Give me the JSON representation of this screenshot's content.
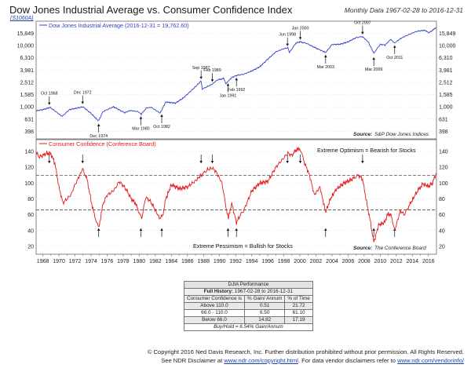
{
  "header": {
    "title": "Dow Jones Industrial Average vs. Consumer Confidence Index",
    "subtitle": "Monthly Data 1967-02-28 to 2016-12-31",
    "chart_code": "(S1060A)"
  },
  "colors": {
    "djia_line": "#3340c8",
    "conf_line": "#e31a1c",
    "grid": "#cccccc",
    "threshold": "#333333"
  },
  "chart_data": [
    {
      "type": "line",
      "legend_label": "Dow Jones Industrial Average (2016-12-31 = 19,762.60)",
      "source": "Source:",
      "source_name": "S&P Dow Jones Indices",
      "scale": "log",
      "y_ticks": [
        "15,849",
        "10,000",
        "6,310",
        "3,981",
        "2,512",
        "1,585",
        "1,000",
        "631",
        "398"
      ],
      "y_tick_values": [
        15849,
        10000,
        6310,
        3981,
        2512,
        1585,
        1000,
        631,
        398
      ],
      "ylim": [
        300,
        25000
      ],
      "xlim": [
        1967.16,
        2017
      ],
      "series": [
        {
          "x": [
            1967.16,
            1968.0,
            1968.9,
            1970.4,
            1971.3,
            1973.0,
            1974.0,
            1974.93,
            1975.5,
            1976.8,
            1978.2,
            1978.8,
            1979.8,
            1980.25,
            1980.9,
            1981.5,
            1982.6,
            1983.3,
            1984.5,
            1985.5,
            1986.5,
            1987.1,
            1987.7,
            1987.85,
            1988.5,
            1989.1,
            1989.7,
            1990.5,
            1990.8,
            1991.5,
            1992.1,
            1993.0,
            1994.0,
            1995.0,
            1996.0,
            1997.0,
            1998.0,
            1998.5,
            1998.7,
            1999.5,
            2000.0,
            2000.8,
            2001.7,
            2002.5,
            2003.2,
            2004.0,
            2005.0,
            2006.0,
            2007.0,
            2007.8,
            2008.5,
            2009.2,
            2010.0,
            2010.6,
            2011.3,
            2011.8,
            2012.5,
            2013.5,
            2014.5,
            2015.5,
            2016.1,
            2016.99
          ],
          "y": [
            860,
            900,
            980,
            700,
            900,
            1000,
            780,
            590,
            840,
            1000,
            800,
            870,
            840,
            760,
            960,
            980,
            790,
            1200,
            1150,
            1400,
            1850,
            2200,
            2650,
            1950,
            2150,
            2350,
            2750,
            2900,
            2400,
            3000,
            3250,
            3400,
            3850,
            4500,
            6000,
            7900,
            8900,
            9200,
            7700,
            11000,
            11500,
            10900,
            9500,
            8500,
            7700,
            10400,
            10500,
            11500,
            13500,
            14000,
            11500,
            7500,
            10500,
            10200,
            12600,
            11000,
            13000,
            15000,
            17000,
            17800,
            16200,
            19763
          ]
        }
      ],
      "annotations": [
        {
          "label": "Oct 1968",
          "x": 1968.8,
          "y": 985,
          "side": "above"
        },
        {
          "label": "Dec 1972",
          "x": 1972.95,
          "y": 1020,
          "side": "above"
        },
        {
          "label": "Dec 1974",
          "x": 1974.95,
          "y": 577,
          "side": "below"
        },
        {
          "label": "Mar 1980",
          "x": 1980.2,
          "y": 760,
          "side": "below"
        },
        {
          "label": "Oct 1982",
          "x": 1982.8,
          "y": 820,
          "side": "below"
        },
        {
          "label": "Sep 1987",
          "x": 1987.7,
          "y": 2600,
          "side": "above"
        },
        {
          "label": "Feb 1989",
          "x": 1989.1,
          "y": 2350,
          "side": "above"
        },
        {
          "label": "Jan 1991",
          "x": 1991.05,
          "y": 2630,
          "side": "below"
        },
        {
          "label": "Feb 1992",
          "x": 1992.1,
          "y": 3250,
          "side": "below"
        },
        {
          "label": "Jun 1998",
          "x": 1998.45,
          "y": 9000,
          "side": "above"
        },
        {
          "label": "Jan 2000",
          "x": 2000.05,
          "y": 11500,
          "side": "above"
        },
        {
          "label": "Mar 2003",
          "x": 2003.2,
          "y": 7700,
          "side": "below"
        },
        {
          "label": "Oct 2007",
          "x": 2007.8,
          "y": 14000,
          "side": "above"
        },
        {
          "label": "Mar 2009",
          "x": 2009.2,
          "y": 7000,
          "side": "below"
        },
        {
          "label": "Oct 2011",
          "x": 2011.8,
          "y": 11000,
          "side": "below"
        }
      ]
    },
    {
      "type": "line",
      "legend_label": "Consumer Confidence (Conference Board)",
      "source": "Source:",
      "source_name": "The Conference Board",
      "y_ticks": [
        20,
        40,
        60,
        80,
        100,
        120,
        140
      ],
      "ylim": [
        10,
        155
      ],
      "xlim": [
        1967.16,
        2017
      ],
      "thresholds": [
        110,
        66
      ],
      "top_text": "Extreme Optimism = Bearish for Stocks",
      "bottom_text": "Extreme Pessimism = Bullish for Stocks",
      "series": [
        {
          "x": [
            1967.16,
            1967.5,
            1968.0,
            1968.5,
            1969.0,
            1969.5,
            1970.0,
            1970.5,
            1971.0,
            1971.5,
            1972.0,
            1972.5,
            1972.95,
            1973.5,
            1974.0,
            1974.4,
            1974.95,
            1975.5,
            1976.0,
            1976.5,
            1977.0,
            1977.5,
            1978.0,
            1978.5,
            1979.0,
            1979.5,
            1980.3,
            1980.8,
            1981.3,
            1981.8,
            1982.5,
            1982.9,
            1983.3,
            1984.0,
            1985.0,
            1986.0,
            1987.0,
            1987.7,
            1988.5,
            1989.1,
            1989.6,
            1990.3,
            1990.8,
            1991.1,
            1991.5,
            1992.1,
            1992.6,
            1993.0,
            1994.0,
            1995.0,
            1996.0,
            1997.0,
            1998.0,
            1998.5,
            1999.0,
            1999.5,
            2000.05,
            2000.6,
            2001.2,
            2001.8,
            2002.5,
            2003.2,
            2003.8,
            2004.5,
            2005.5,
            2006.5,
            2007.3,
            2007.8,
            2008.3,
            2008.8,
            2009.2,
            2009.8,
            2010.5,
            2011.0,
            2011.4,
            2011.8,
            2012.5,
            2013.0,
            2013.8,
            2014.5,
            2015.3,
            2016.0,
            2016.5,
            2016.99
          ],
          "y": [
            140,
            133,
            135,
            138,
            137,
            125,
            95,
            75,
            80,
            85,
            98,
            108,
            118,
            105,
            78,
            60,
            43,
            74,
            85,
            88,
            93,
            102,
            97,
            90,
            80,
            75,
            55,
            82,
            78,
            70,
            56,
            58,
            80,
            98,
            93,
            95,
            103,
            110,
            117,
            119,
            114,
            100,
            70,
            55,
            75,
            50,
            60,
            65,
            90,
            100,
            102,
            120,
            132,
            138,
            135,
            142,
            143,
            125,
            110,
            85,
            95,
            63,
            80,
            92,
            100,
            105,
            110,
            105,
            76,
            50,
            25,
            47,
            50,
            62,
            58,
            40,
            65,
            60,
            75,
            88,
            99,
            96,
            100,
            113
          ]
        }
      ]
    }
  ],
  "x_axis": {
    "tick_labels": [
      "1968",
      "1970",
      "1972",
      "1974",
      "1976",
      "1978",
      "1980",
      "1982",
      "1984",
      "1986",
      "1988",
      "1990",
      "1992",
      "1994",
      "1996",
      "1998",
      "2000",
      "2002",
      "2004",
      "2006",
      "2008",
      "2010",
      "2012",
      "2014",
      "2016"
    ]
  },
  "performance_table": {
    "heading": "DJIA Performance",
    "full_history_label": "Full History:",
    "full_history_value": "1967-02-28 to 2016-12-31",
    "columns": [
      "Consumer Confidence is",
      "% Gain/ Annum",
      "% of Time"
    ],
    "rows": [
      {
        "label": "Above 110.0",
        "gain": "0.51",
        "time": "21.72"
      },
      {
        "label": "66.0 - 110.0",
        "gain": "6.50",
        "time": "61.10"
      },
      {
        "label": "Below 66.0",
        "gain": "14.82",
        "time": "17.19"
      }
    ],
    "buy_hold": "Buy/Hold = 6.54% Gain/Annum"
  },
  "footer": {
    "copyright": "© Copyright 2016 Ned Davis Research, Inc. Further distribution prohibited without prior permission. All Rights Reserved.",
    "disclaimer_pre": "See NDR Disclaimer at",
    "disclaimer_url": "www.ndr.com/copyright.html",
    "disclaimer_mid": ". For data vendor disclaimers refer to",
    "vendor_url": "www.ndr.com/vendorinfo/"
  }
}
